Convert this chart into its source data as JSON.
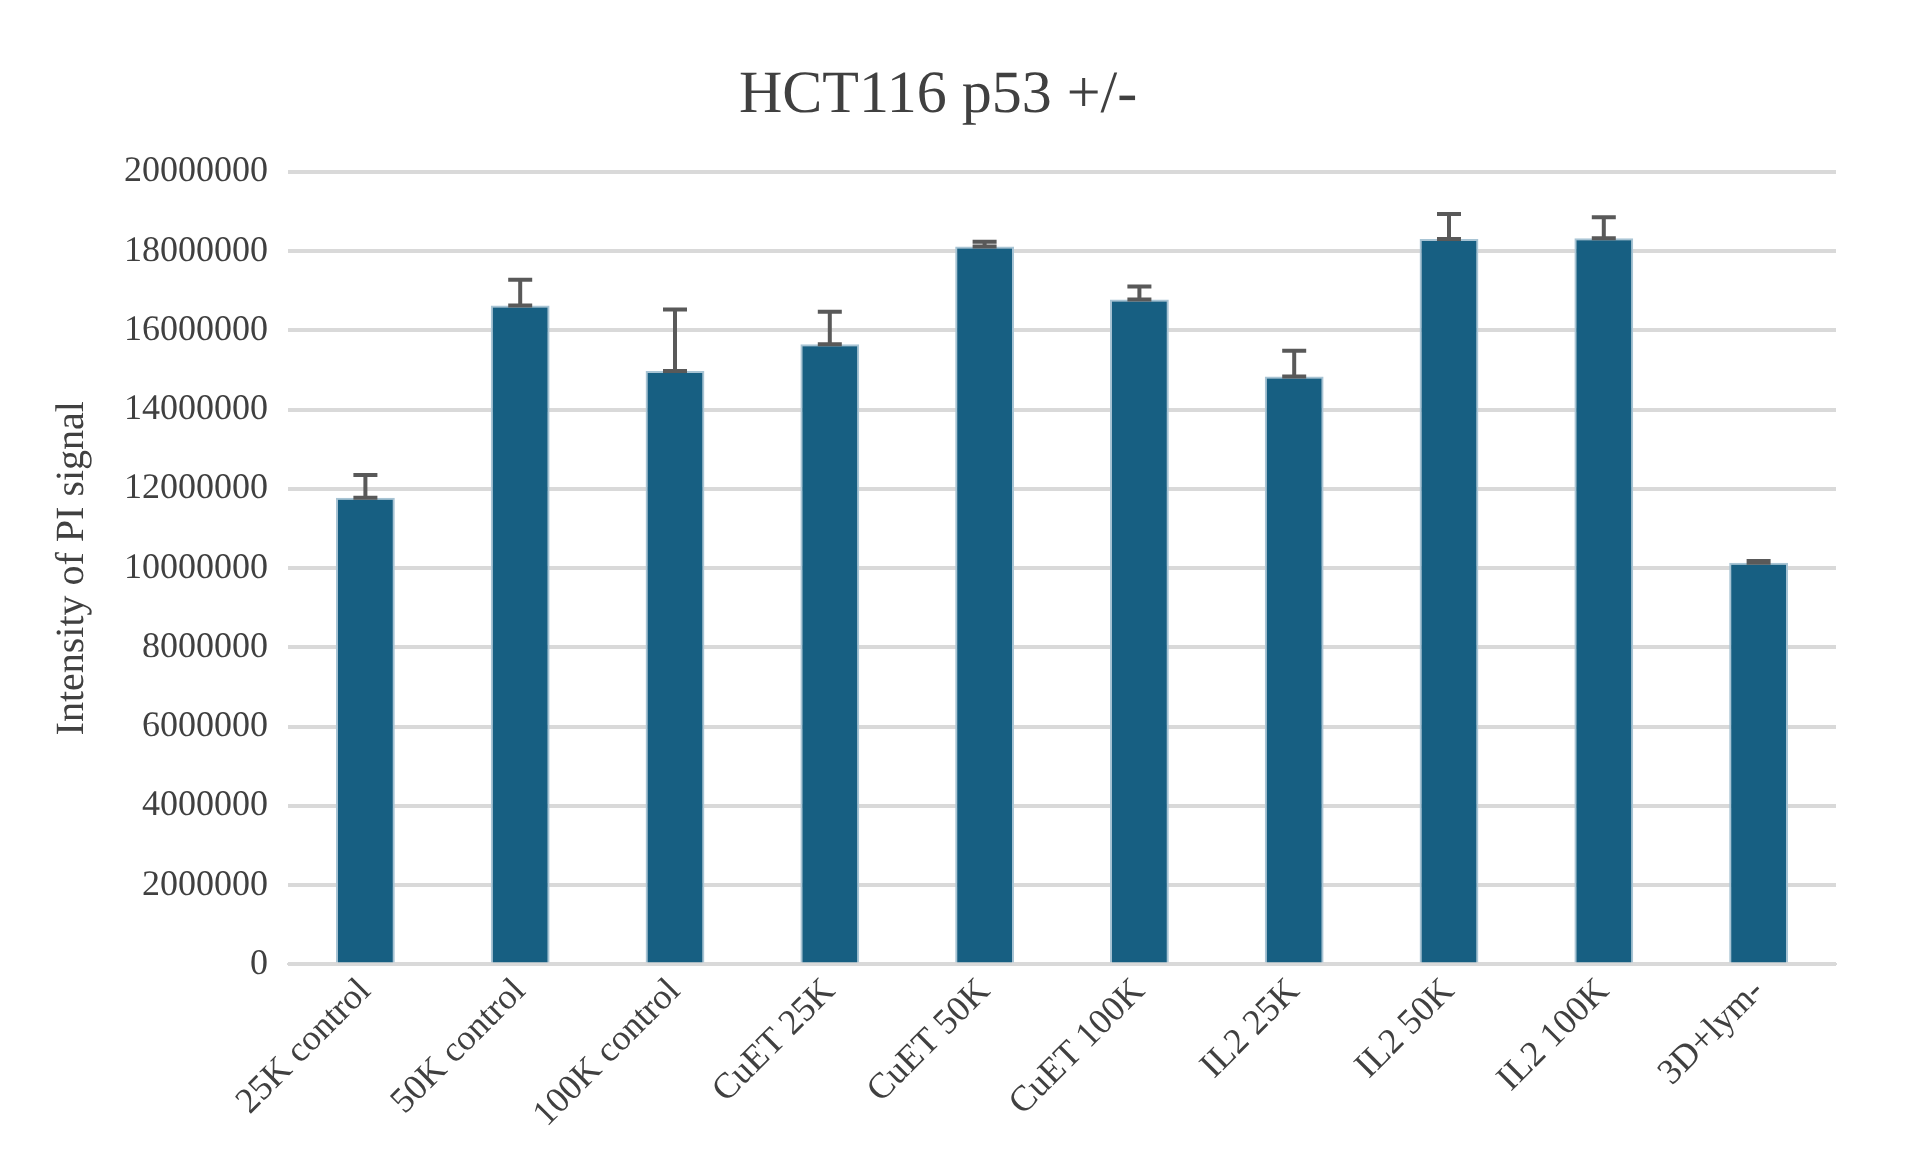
{
  "chart_data": {
    "type": "bar",
    "title": "HCT116 p53 +/-",
    "ylabel": "Intensity of PI signal",
    "categories": [
      "25K control",
      "50K control",
      "100K control",
      "CuET 25K",
      "CuET 50K",
      "CuET 100K",
      "IL2 25K",
      "IL2 50K",
      "IL2 100K",
      "3D+lym-"
    ],
    "values": [
      11780000,
      16630000,
      14980000,
      15650000,
      18120000,
      16780000,
      14840000,
      18310000,
      18330000,
      10140000
    ],
    "errors": [
      [
        11780000,
        12350000
      ],
      [
        16630000,
        17280000
      ],
      [
        14980000,
        16530000
      ],
      [
        15650000,
        16470000
      ],
      [
        18120000,
        18240000
      ],
      [
        16780000,
        17110000
      ],
      [
        14840000,
        15490000
      ],
      [
        18310000,
        18940000
      ],
      [
        18330000,
        18860000
      ],
      [
        10140000,
        10180000
      ]
    ],
    "color": "#175f82",
    "ylim": [
      0,
      20000000
    ],
    "yticks": [
      0,
      2000000,
      4000000,
      6000000,
      8000000,
      10000000,
      12000000,
      14000000,
      16000000,
      18000000,
      20000000
    ],
    "grid": "y",
    "legend": false
  }
}
